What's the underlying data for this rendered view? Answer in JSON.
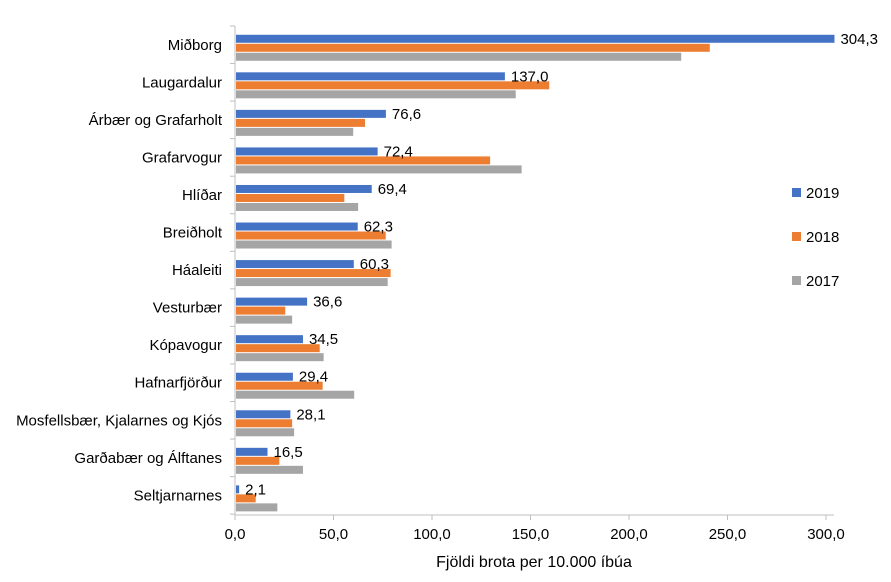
{
  "chart_data": {
    "type": "bar",
    "orientation": "horizontal",
    "title": "",
    "xlabel": "Fjöldi brota per 10.000 íbúa",
    "ylabel": "",
    "xlim": [
      0,
      300
    ],
    "grid": false,
    "legend_position": "right",
    "categories": [
      "Miðborg",
      "Laugardalur",
      "Árbær og Grafarholt",
      "Grafarvogur",
      "Hlíðar",
      "Breiðholt",
      "Háaleiti",
      "Vesturbær",
      "Kópavogur",
      "Hafnarfjörður",
      "Mosfellsbær, Kjalarnes og Kjós",
      "Garðabær og Álftanes",
      "Seltjarnarnes"
    ],
    "x_ticks": [
      0,
      50,
      100,
      150,
      200,
      250,
      300
    ],
    "x_tick_labels": [
      "0,0",
      "50,0",
      "100,0",
      "150,0",
      "200,0",
      "250,0",
      "300,0"
    ],
    "series": [
      {
        "name": "2019",
        "color": "#4472C4",
        "values": [
          304.3,
          137.0,
          76.6,
          72.4,
          69.4,
          62.3,
          60.3,
          36.6,
          34.5,
          29.4,
          28.1,
          16.5,
          2.1
        ],
        "data_labels": [
          "304,3",
          "137,0",
          "76,6",
          "72,4",
          "69,4",
          "62,3",
          "60,3",
          "36,6",
          "34,5",
          "29,4",
          "28,1",
          "16,5",
          "2,1"
        ]
      },
      {
        "name": "2018",
        "color": "#ED7D31",
        "values": [
          241,
          159.5,
          66,
          129.5,
          55.5,
          76.5,
          79,
          25.5,
          43,
          44.5,
          29,
          22.5,
          10.5
        ]
      },
      {
        "name": "2017",
        "color": "#A5A5A5",
        "values": [
          226.5,
          142.5,
          60,
          145.5,
          62.5,
          79.5,
          77.5,
          29,
          45,
          60.5,
          30,
          34.5,
          21.5
        ]
      }
    ]
  }
}
